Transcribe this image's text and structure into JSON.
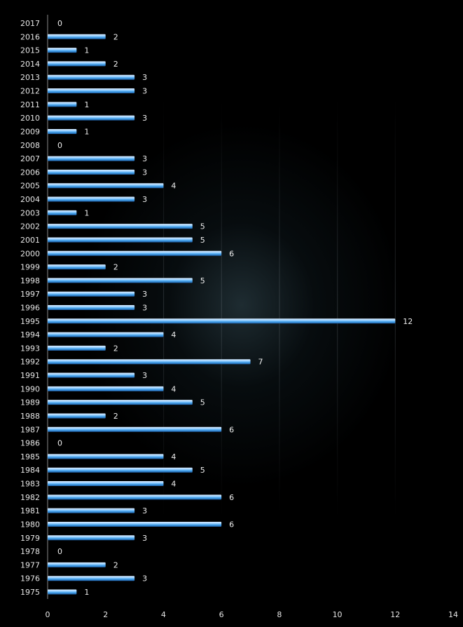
{
  "chart_data": {
    "type": "bar",
    "orientation": "horizontal",
    "title": "",
    "xlabel": "",
    "ylabel": "",
    "xlim": [
      0,
      14
    ],
    "x_ticks": [
      0,
      2,
      4,
      6,
      8,
      10,
      12,
      14
    ],
    "grid": false,
    "legend": "none",
    "data_labels": true,
    "bar_color": "#4aa8f0",
    "bar_highlight_color": "#d8ecff",
    "background_color": "#000000",
    "categories": [
      "2017",
      "2016",
      "2015",
      "2014",
      "2013",
      "2012",
      "2011",
      "2010",
      "2009",
      "2008",
      "2007",
      "2006",
      "2005",
      "2004",
      "2003",
      "2002",
      "2001",
      "2000",
      "1999",
      "1998",
      "1997",
      "1996",
      "1995",
      "1994",
      "1993",
      "1992",
      "1991",
      "1990",
      "1989",
      "1988",
      "1987",
      "1986",
      "1985",
      "1984",
      "1983",
      "1982",
      "1981",
      "1980",
      "1979",
      "1978",
      "1977",
      "1976",
      "1975"
    ],
    "values": [
      0,
      2,
      1,
      2,
      3,
      3,
      1,
      3,
      1,
      0,
      3,
      3,
      4,
      3,
      1,
      5,
      5,
      6,
      2,
      5,
      3,
      3,
      12,
      4,
      2,
      7,
      3,
      4,
      5,
      2,
      6,
      0,
      4,
      5,
      4,
      6,
      3,
      6,
      3,
      0,
      2,
      3,
      1
    ]
  }
}
